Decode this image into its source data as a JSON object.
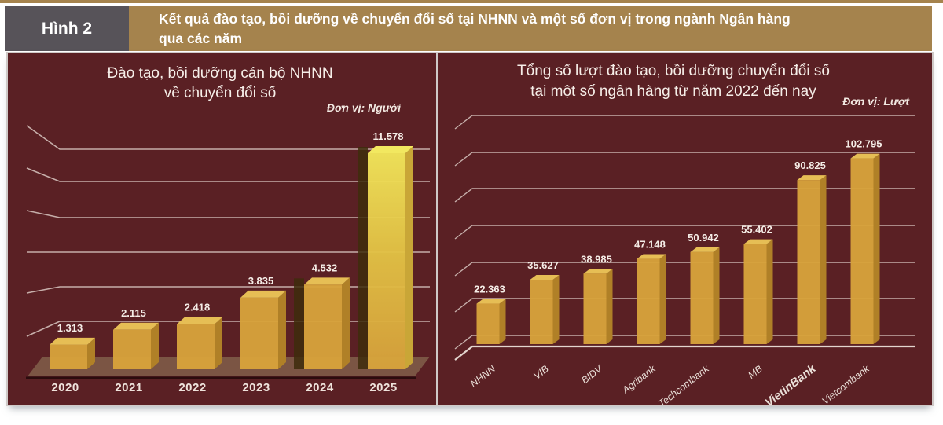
{
  "figure": {
    "tag": "Hình 2",
    "title_line1": "Kết quả đào tạo, bồi dưỡng về chuyển đổi số tại NHNN và một số đơn vị trong ngành Ngân hàng",
    "title_line2": "qua các năm"
  },
  "colors": {
    "header_gold": "#A5834D",
    "tag_gray": "#575359",
    "panel_maroon": "#5A2024",
    "panel_border": "#CFC9C7",
    "gridline": "#D9C8C2",
    "floor": "#7B5544",
    "floor_edge": "#2B0C0E",
    "bar_front": "#D7A23B",
    "bar_top": "#E6BE55",
    "bar_side": "#B08027",
    "bar_shadow": "#3E2D0C",
    "bright_bar_top_color": "#F2E65A",
    "text_light": "#F5EDE7"
  },
  "chart_data": [
    {
      "type": "bar",
      "title_lines": [
        "Đào tạo, bồi dưỡng cán bộ NHNN",
        "về chuyển đổi số"
      ],
      "unit": "Đơn vị: Người",
      "categories": [
        "2020",
        "2021",
        "2022",
        "2023",
        "2024",
        "2025"
      ],
      "values": [
        1313,
        2115,
        2418,
        3835,
        4532,
        11578
      ],
      "value_labels": [
        "1.313",
        "2.115",
        "2.418",
        "3.835",
        "4.532",
        "11.578"
      ],
      "ylim": [
        0,
        12000
      ],
      "grid": true,
      "legend": "none",
      "style": "3d-gold-on-maroon"
    },
    {
      "type": "bar",
      "title_lines": [
        "Tổng số lượt đào tạo, bồi dưỡng chuyển đổi số",
        "tại một số ngân hàng từ năm 2022 đến nay"
      ],
      "unit": "Đơn vị: Lượt",
      "categories": [
        "NHNN",
        "VIB",
        "BIDV",
        "Agribank",
        "Techcombank",
        "MB",
        "VietinBank",
        "Vietcombank"
      ],
      "values": [
        22363,
        35627,
        38985,
        47148,
        50942,
        55402,
        90825,
        102795
      ],
      "value_labels": [
        "22.363",
        "35.627",
        "38.985",
        "47.148",
        "50.942",
        "55.402",
        "90.825",
        "102.795"
      ],
      "emphasized_category": "VietinBank",
      "ylim": [
        0,
        110000
      ],
      "grid": true,
      "legend": "none",
      "style": "3d-gold-on-maroon"
    }
  ]
}
